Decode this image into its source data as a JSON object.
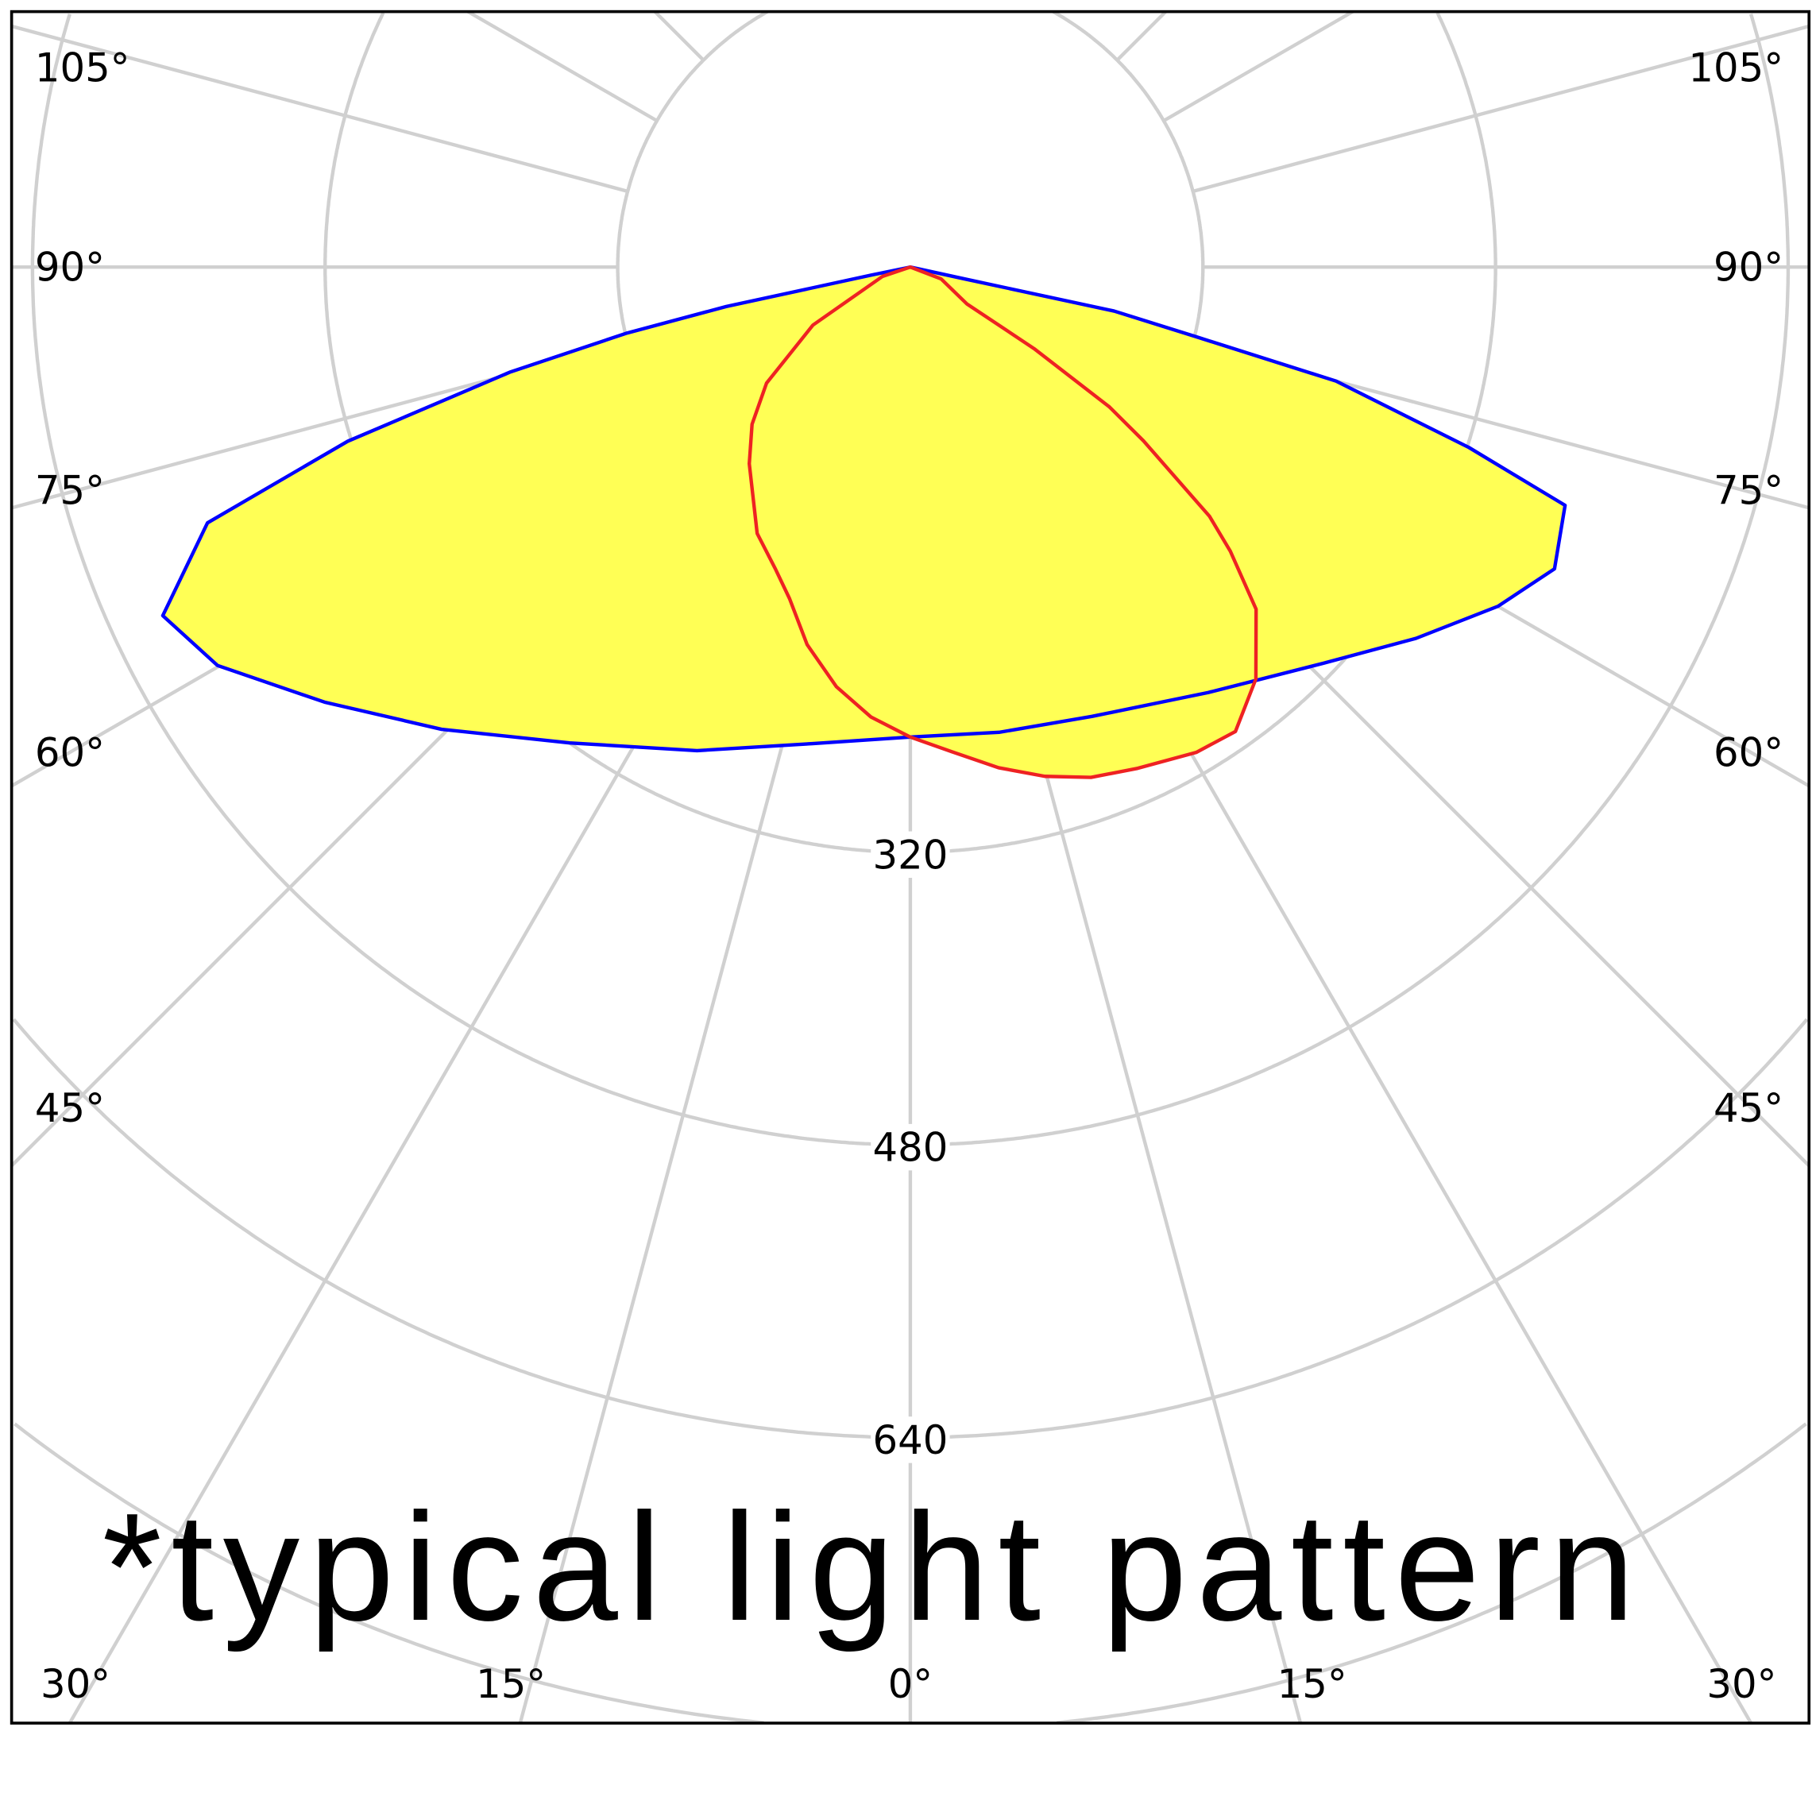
{
  "chart_data": {
    "type": "polar-line",
    "title": "",
    "annotation": "*typical light pattern",
    "radial_axis": {
      "ticks": [
        160,
        320,
        480,
        640,
        800,
        960
      ],
      "labels": [
        "320",
        "480",
        "640"
      ]
    },
    "angle_axis": {
      "step_deg": 15,
      "zero": "down",
      "side_labels": [
        "105°",
        "90°",
        "75°",
        "60°",
        "45°"
      ],
      "bottom_labels": [
        "30°",
        "15°",
        "0°",
        "15°",
        "30°"
      ]
    },
    "grid": true,
    "colors": {
      "grid": "#d0d0d0",
      "fill": "#ffff55",
      "series_a": "#0000ff",
      "series_b": "#ee2222",
      "frame": "#000000"
    },
    "series": [
      {
        "color": "#0000ff",
        "points": [
          [
            90,
            0
          ],
          [
            77.7,
            30
          ],
          [
            77.8,
            114
          ],
          [
            76.3,
            161
          ],
          [
            75.0,
            241
          ],
          [
            72.1,
            321
          ],
          [
            70.0,
            381
          ],
          [
            64.9,
            389
          ],
          [
            60.0,
            371
          ],
          [
            53.7,
            343
          ],
          [
            46.2,
            313
          ],
          [
            35.0,
            284
          ],
          [
            22.0,
            265
          ],
          [
            10.8,
            259
          ],
          [
            0,
            257
          ],
          [
            -11.6,
            266
          ],
          [
            -23.8,
            289
          ],
          [
            -35.6,
            320
          ],
          [
            -45.4,
            360
          ],
          [
            -53.4,
            399
          ],
          [
            -60.1,
            437
          ],
          [
            -65.0,
            451
          ],
          [
            -70.0,
            409
          ],
          [
            -72.8,
            322
          ],
          [
            -75.3,
            226
          ],
          [
            -76.9,
            159
          ],
          [
            -77.9,
            103
          ],
          [
            -78.4,
            22
          ],
          [
            -90,
            0
          ]
        ]
      },
      {
        "color": "#ee2222",
        "points": [
          [
            -90,
            0
          ],
          [
            -71.6,
            16
          ],
          [
            -59.2,
            62
          ],
          [
            -51.1,
            101
          ],
          [
            -45.2,
            122
          ],
          [
            -39.3,
            139
          ],
          [
            -29.9,
            168
          ],
          [
            -24.0,
            181
          ],
          [
            -20.0,
            193
          ],
          [
            -15.3,
            214
          ],
          [
            -10.0,
            233
          ],
          [
            -5.0,
            247
          ],
          [
            0,
            257
          ],
          [
            4.9,
            266
          ],
          [
            10.0,
            278
          ],
          [
            14.8,
            288
          ],
          [
            19.5,
            296
          ],
          [
            24.4,
            301
          ],
          [
            30.5,
            308
          ],
          [
            35.0,
            310
          ],
          [
            40.0,
            294
          ],
          [
            45.3,
            266
          ],
          [
            48.4,
            234
          ],
          [
            50.2,
            213
          ],
          [
            53.3,
            159
          ],
          [
            54.9,
            133
          ],
          [
            56.6,
            81
          ],
          [
            56.9,
            37
          ],
          [
            69,
            18
          ],
          [
            90,
            0
          ]
        ]
      }
    ]
  }
}
